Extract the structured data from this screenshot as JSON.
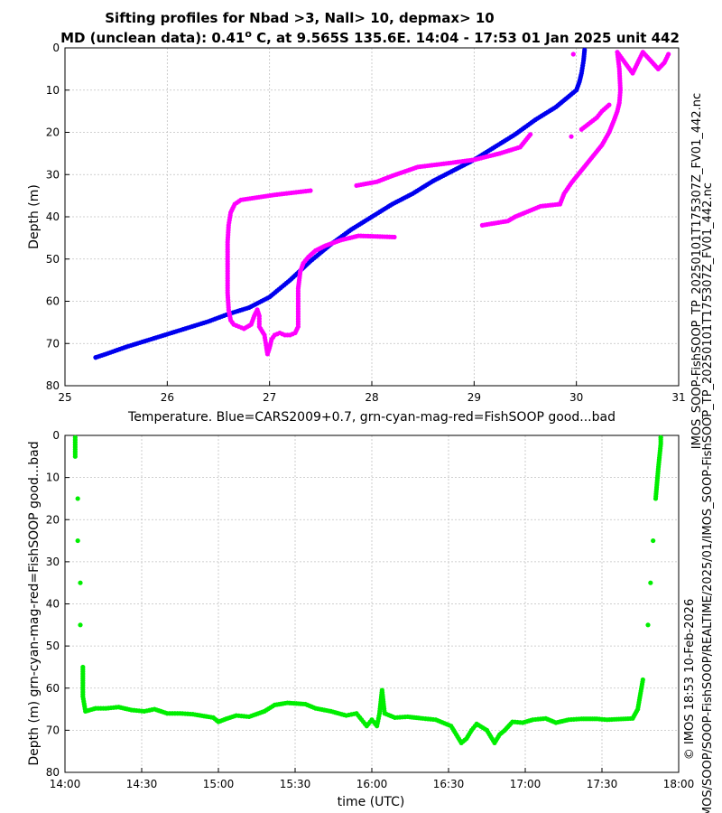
{
  "title": {
    "line1": "Sifting profiles for Nbad >3, Nall> 10, depmax> 10",
    "line2_pre": "MD (unclean data): 0.41",
    "line2_deg": "o",
    "line2_post": " C, at 9.565S 135.6E. 14:04 - 17:53 01 Jan 2025 unit 442"
  },
  "side_text": {
    "filename": "IMOS_SOOP-FishSOOP_TP_20250101T175307Z_FV01_442.nc",
    "credit": "© IMOS 18:53 10-Feb-2026",
    "path": "IMOS/SOOP/SOOP-FishSOOP/REALTIME/2025/01/IMOS_SOOP-FishSOOP_TP_20250101T175307Z_FV01_442.nc"
  },
  "colors": {
    "cars": "#0000ee",
    "fishsoop_profile": "#ff00ff",
    "fishsoop_time": "#00ee00"
  },
  "chart_data": [
    {
      "type": "scatter",
      "xlabel": "Temperature. Blue=CARS2009+0.7, grn-cyan-mag-red=FishSOOP good...bad",
      "ylabel": "Depth (m)",
      "xlim": [
        25,
        31
      ],
      "ylim": [
        80,
        0
      ],
      "y_reversed": true,
      "grid": true,
      "xticks": [
        25,
        26,
        27,
        28,
        29,
        30,
        31
      ],
      "yticks": [
        0,
        10,
        20,
        30,
        40,
        50,
        60,
        70,
        80
      ],
      "series": [
        {
          "color": "blue",
          "points": [
            [
              30.08,
              0.5
            ],
            [
              30.07,
              3
            ],
            [
              30.05,
              6
            ],
            [
              30.03,
              8
            ],
            [
              30.0,
              10
            ],
            [
              29.9,
              12
            ],
            [
              29.8,
              14
            ],
            [
              29.6,
              17
            ],
            [
              29.4,
              20.5
            ],
            [
              29.2,
              23.5
            ],
            [
              29.0,
              26.5
            ],
            [
              28.8,
              29
            ],
            [
              28.6,
              31.5
            ],
            [
              28.4,
              34.5
            ],
            [
              28.2,
              37
            ],
            [
              28.0,
              40
            ],
            [
              27.8,
              43
            ],
            [
              27.6,
              46.5
            ],
            [
              27.4,
              50.5
            ],
            [
              27.2,
              55
            ],
            [
              27.0,
              59
            ],
            [
              26.8,
              61.5
            ],
            [
              26.6,
              63
            ],
            [
              26.4,
              64.8
            ],
            [
              26.2,
              66.3
            ],
            [
              26.0,
              67.8
            ],
            [
              25.8,
              69.3
            ],
            [
              25.6,
              70.8
            ],
            [
              25.4,
              72.5
            ],
            [
              25.3,
              73.3
            ]
          ]
        },
        {
          "color": "magenta",
          "points": [
            [
              30.9,
              1.5
            ],
            [
              30.88,
              2.5
            ],
            [
              30.86,
              3.5
            ],
            [
              30.8,
              5
            ],
            [
              30.65,
              1
            ],
            [
              30.55,
              6
            ],
            [
              30.4,
              1
            ],
            [
              30.42,
              5
            ],
            [
              30.43,
              10
            ],
            [
              30.42,
              13
            ],
            [
              30.4,
              15
            ],
            [
              30.37,
              17
            ],
            [
              30.32,
              20
            ],
            [
              30.25,
              23
            ],
            [
              30.15,
              26
            ],
            [
              30.05,
              29
            ],
            [
              29.95,
              32
            ],
            [
              29.88,
              34.5
            ],
            [
              29.84,
              37
            ],
            [
              29.65,
              37.5
            ],
            [
              29.5,
              39
            ],
            [
              29.4,
              40
            ],
            [
              29.33,
              41
            ],
            [
              29.08,
              42
            ],
            [
              30.32,
              13.5
            ],
            [
              30.25,
              15
            ],
            [
              30.2,
              16.5
            ],
            [
              30.12,
              18
            ],
            [
              30.05,
              19.3
            ],
            [
              29.97,
              1.5
            ],
            [
              29.95,
              21
            ],
            [
              29.55,
              20.5
            ],
            [
              29.45,
              23.5
            ],
            [
              29.25,
              25
            ],
            [
              29.0,
              26.5
            ],
            [
              28.75,
              27.3
            ],
            [
              28.45,
              28.2
            ],
            [
              28.2,
              30.3
            ],
            [
              28.05,
              31.7
            ],
            [
              27.85,
              32.6
            ],
            [
              27.4,
              33.8
            ],
            [
              27.05,
              34.8
            ],
            [
              26.72,
              36
            ],
            [
              26.66,
              37
            ],
            [
              26.62,
              39
            ],
            [
              26.6,
              42
            ],
            [
              26.59,
              46
            ],
            [
              26.59,
              50
            ],
            [
              26.59,
              54
            ],
            [
              26.59,
              58
            ],
            [
              26.6,
              62
            ],
            [
              26.62,
              64.5
            ],
            [
              26.65,
              65.5
            ],
            [
              26.7,
              66
            ],
            [
              26.75,
              66.5
            ],
            [
              26.82,
              65.5
            ],
            [
              26.85,
              63.5
            ],
            [
              26.88,
              62
            ],
            [
              26.9,
              63.5
            ],
            [
              26.9,
              66
            ],
            [
              26.95,
              68
            ],
            [
              26.97,
              71
            ],
            [
              26.98,
              72.5
            ],
            [
              27.0,
              71
            ],
            [
              27.02,
              69
            ],
            [
              27.05,
              68
            ],
            [
              27.1,
              67.5
            ],
            [
              27.15,
              68
            ],
            [
              27.2,
              68
            ],
            [
              27.25,
              67.5
            ],
            [
              27.28,
              66
            ],
            [
              27.28,
              63
            ],
            [
              27.28,
              60
            ],
            [
              27.28,
              57
            ],
            [
              27.29,
              55
            ],
            [
              27.3,
              53
            ],
            [
              27.33,
              51
            ],
            [
              27.38,
              49.5
            ],
            [
              27.45,
              48
            ],
            [
              27.55,
              46.8
            ],
            [
              27.7,
              45.5
            ],
            [
              27.87,
              44.5
            ],
            [
              28.22,
              44.8
            ]
          ]
        }
      ]
    },
    {
      "type": "scatter",
      "xlabel": "time (UTC)",
      "ylabel": "Depth (m) grn-cyan-mag-red=FishSOOP good...bad",
      "ylim": [
        80,
        0
      ],
      "y_reversed": true,
      "grid": true,
      "xlim": [
        "14:00",
        "18:00"
      ],
      "xticks": [
        "14:00",
        "14:30",
        "15:00",
        "15:30",
        "16:00",
        "16:30",
        "17:00",
        "17:30",
        "18:00"
      ],
      "yticks": [
        0,
        10,
        20,
        30,
        40,
        50,
        60,
        70,
        80
      ],
      "series": [
        {
          "color": "green",
          "points": [
            [
              "14:04",
              0.5
            ],
            [
              "14:04",
              5
            ],
            [
              "14:05",
              15
            ],
            [
              "14:05",
              25
            ],
            [
              "14:06",
              35
            ],
            [
              "14:06",
              45
            ],
            [
              "14:07",
              55
            ],
            [
              "14:07",
              62
            ],
            [
              "14:08",
              65.5
            ],
            [
              "14:12",
              64.8
            ],
            [
              "14:16",
              64.8
            ],
            [
              "14:21",
              64.5
            ],
            [
              "14:26",
              65.2
            ],
            [
              "14:31",
              65.5
            ],
            [
              "14:35",
              65
            ],
            [
              "14:40",
              66
            ],
            [
              "14:45",
              66
            ],
            [
              "14:50",
              66.2
            ],
            [
              "14:58",
              67
            ],
            [
              "15:00",
              68
            ],
            [
              "15:03",
              67.3
            ],
            [
              "15:07",
              66.5
            ],
            [
              "15:12",
              66.8
            ],
            [
              "15:18",
              65.5
            ],
            [
              "15:22",
              64
            ],
            [
              "15:27",
              63.5
            ],
            [
              "15:34",
              63.8
            ],
            [
              "15:38",
              64.8
            ],
            [
              "15:44",
              65.5
            ],
            [
              "15:50",
              66.5
            ],
            [
              "15:54",
              66
            ],
            [
              "15:56",
              67.5
            ],
            [
              "15:58",
              69
            ],
            [
              "16:00",
              67.5
            ],
            [
              "16:02",
              69
            ],
            [
              "16:03",
              66
            ],
            [
              "16:04",
              60.5
            ],
            [
              "16:05",
              66
            ],
            [
              "16:09",
              67
            ],
            [
              "16:14",
              66.8
            ],
            [
              "16:20",
              67.2
            ],
            [
              "16:25",
              67.5
            ],
            [
              "16:31",
              69
            ],
            [
              "16:33",
              71
            ],
            [
              "16:35",
              73
            ],
            [
              "16:37",
              72
            ],
            [
              "16:39",
              70
            ],
            [
              "16:41",
              68.5
            ],
            [
              "16:45",
              70
            ],
            [
              "16:47",
              72
            ],
            [
              "16:48",
              73
            ],
            [
              "16:50",
              71
            ],
            [
              "16:52",
              70
            ],
            [
              "16:55",
              68
            ],
            [
              "16:59",
              68.2
            ],
            [
              "17:03",
              67.5
            ],
            [
              "17:08",
              67.2
            ],
            [
              "17:12",
              68.2
            ],
            [
              "17:17",
              67.5
            ],
            [
              "17:22",
              67.3
            ],
            [
              "17:28",
              67.3
            ],
            [
              "17:32",
              67.5
            ],
            [
              "17:42",
              67.2
            ],
            [
              "17:44",
              65
            ],
            [
              "17:46",
              58
            ],
            [
              "17:48",
              45
            ],
            [
              "17:49",
              35
            ],
            [
              "17:50",
              25
            ],
            [
              "17:51",
              15
            ],
            [
              "17:52",
              8
            ],
            [
              "17:53",
              2
            ],
            [
              "17:53",
              0.5
            ]
          ]
        }
      ]
    }
  ]
}
